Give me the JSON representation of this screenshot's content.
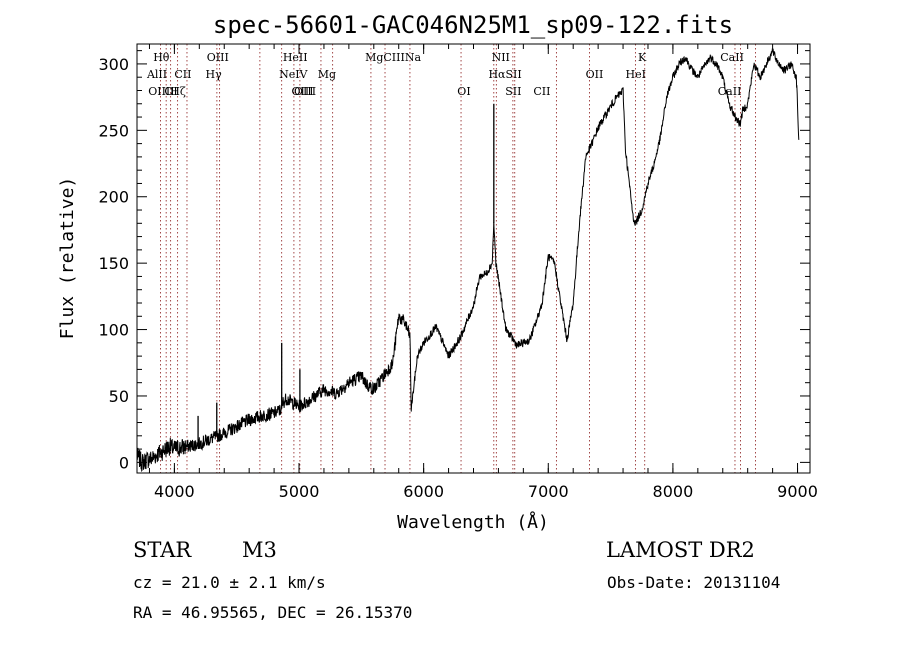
{
  "chart_data": {
    "type": "line",
    "title": "spec-56601-GAC046N25M1_sp09-122.fits",
    "xlabel": "Wavelength (Å)",
    "ylabel": "Flux (relative)",
    "xlim": [
      3700,
      9100
    ],
    "ylim": [
      -8,
      315
    ],
    "xticks": [
      4000,
      5000,
      6000,
      7000,
      8000,
      9000
    ],
    "yticks": [
      0,
      50,
      100,
      150,
      200,
      250,
      300
    ],
    "grid": false,
    "line_color": "#000000",
    "marker_color": "#8b1a1a",
    "spectrum": {
      "x": [
        3700,
        3740,
        3780,
        3820,
        3860,
        3900,
        3960,
        4000,
        4100,
        4200,
        4300,
        4400,
        4500,
        4600,
        4700,
        4800,
        4860,
        4870,
        4900,
        5000,
        5100,
        5200,
        5300,
        5400,
        5500,
        5550,
        5600,
        5700,
        5750,
        5800,
        5850,
        5890,
        5900,
        5950,
        6000,
        6100,
        6200,
        6300,
        6400,
        6450,
        6500,
        6550,
        6563,
        6580,
        6620,
        6660,
        6700,
        6750,
        6800,
        6850,
        6900,
        6950,
        7000,
        7050,
        7100,
        7150,
        7200,
        7250,
        7300,
        7350,
        7400,
        7450,
        7500,
        7550,
        7600,
        7620,
        7650,
        7680,
        7700,
        7750,
        7800,
        7850,
        7900,
        7950,
        8000,
        8050,
        8100,
        8150,
        8200,
        8250,
        8300,
        8350,
        8400,
        8450,
        8500,
        8540,
        8560,
        8600,
        8650,
        8700,
        8750,
        8800,
        8820,
        8850,
        8900,
        8950,
        8990,
        9000,
        9010
      ],
      "y": [
        5,
        0,
        2,
        3,
        6,
        8,
        12,
        10,
        12,
        14,
        18,
        22,
        27,
        32,
        35,
        37,
        40,
        45,
        48,
        42,
        48,
        55,
        52,
        60,
        65,
        58,
        55,
        68,
        74,
        110,
        105,
        95,
        40,
        80,
        90,
        102,
        80,
        95,
        118,
        140,
        142,
        150,
        180,
        150,
        125,
        100,
        95,
        88,
        90,
        92,
        105,
        120,
        155,
        150,
        120,
        92,
        120,
        180,
        230,
        240,
        252,
        260,
        268,
        275,
        280,
        235,
        210,
        185,
        180,
        190,
        210,
        225,
        245,
        275,
        290,
        300,
        305,
        296,
        290,
        298,
        305,
        300,
        290,
        270,
        260,
        255,
        265,
        270,
        300,
        290,
        300,
        310,
        305,
        300,
        295,
        300,
        290,
        270,
        240
      ]
    },
    "spikes": [
      {
        "x": 4190,
        "y": 35
      },
      {
        "x": 4340,
        "y": 45
      },
      {
        "x": 4861,
        "y": 90
      },
      {
        "x": 5007,
        "y": 70
      },
      {
        "x": 6563,
        "y": 270
      }
    ],
    "line_markers": {
      "wavelengths": [
        3889,
        3934,
        3970,
        4026,
        4101,
        4341,
        4363,
        4686,
        4861,
        4959,
        5007,
        5176,
        5270,
        5577,
        5690,
        5890,
        6300,
        6563,
        6583,
        6716,
        6731,
        7065,
        7330,
        7699,
        7774,
        8498,
        8542,
        8662
      ],
      "labels": [
        {
          "text": "Hθ",
          "x": 3830,
          "row": 0
        },
        {
          "text": "AlII",
          "x": 3780,
          "row": 1
        },
        {
          "text": "CII",
          "x": 4000,
          "row": 1
        },
        {
          "text": "OIIIHζ",
          "x": 3790,
          "row": 2
        },
        {
          "text": "OI",
          "x": 3920,
          "row": 2
        },
        {
          "text": "OIII",
          "x": 4260,
          "row": 0
        },
        {
          "text": "Hγ",
          "x": 4250,
          "row": 1
        },
        {
          "text": "HeII",
          "x": 4870,
          "row": 0
        },
        {
          "text": "NeIV",
          "x": 4840,
          "row": 1
        },
        {
          "text": "Mg",
          "x": 5150,
          "row": 1
        },
        {
          "text": "OIII",
          "x": 4940,
          "row": 2
        },
        {
          "text": "OIII",
          "x": 4960,
          "row": 2
        },
        {
          "text": "MgCIIINa",
          "x": 5530,
          "row": 0
        },
        {
          "text": "NII",
          "x": 6545,
          "row": 0
        },
        {
          "text": "HαSII",
          "x": 6520,
          "row": 1
        },
        {
          "text": "OI",
          "x": 6270,
          "row": 2
        },
        {
          "text": "SII",
          "x": 6655,
          "row": 2
        },
        {
          "text": "CII",
          "x": 6880,
          "row": 2
        },
        {
          "text": "OII",
          "x": 7300,
          "row": 1
        },
        {
          "text": "K",
          "x": 7720,
          "row": 0
        },
        {
          "text": "HeI",
          "x": 7620,
          "row": 1
        },
        {
          "text": "CaII",
          "x": 8380,
          "row": 0
        },
        {
          "text": "CaII",
          "x": 8360,
          "row": 2
        }
      ]
    }
  },
  "info": {
    "object_class": "STAR",
    "subclass": "M3",
    "survey": "LAMOST DR2",
    "cz": "cz = 21.0 ± 2.1 km/s",
    "obs_date": "Obs-Date: 20131104",
    "coords": "RA =  46.95565, DEC =  26.15370"
  }
}
